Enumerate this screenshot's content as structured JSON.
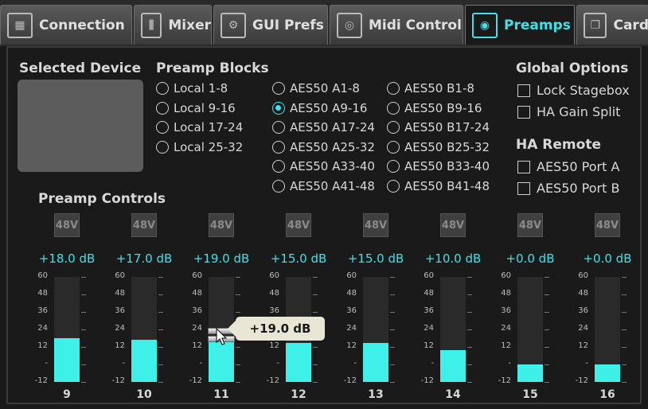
{
  "tabs": [
    {
      "label": "Connection",
      "icon": "mixer-console-icon"
    },
    {
      "label": "Mixer",
      "icon": "faders-icon"
    },
    {
      "label": "GUI Prefs",
      "icon": "gears-icon"
    },
    {
      "label": "Midi Control",
      "icon": "midi-connector-icon"
    },
    {
      "label": "Preamps",
      "icon": "preamp-knob-icon",
      "active": true
    },
    {
      "label": "Card",
      "icon": "card-windows-icon"
    }
  ],
  "selected_device": {
    "heading": "Selected Device"
  },
  "preamp_blocks": {
    "heading": "Preamp Blocks",
    "col1": [
      "Local 1-8",
      "Local 9-16",
      "Local 17-24",
      "Local 25-32"
    ],
    "col2": [
      "AES50 A1-8",
      "AES50 A9-16",
      "AES50 A17-24",
      "AES50 A25-32",
      "AES50 A33-40",
      "AES50 A41-48"
    ],
    "col3": [
      "AES50 B1-8",
      "AES50 B9-16",
      "AES50 B17-24",
      "AES50 B25-32",
      "AES50 B33-40",
      "AES50 B41-48"
    ],
    "selected": "AES50 A9-16"
  },
  "global_options": {
    "heading": "Global Options",
    "items": [
      "Lock Stagebox",
      "HA Gain Split"
    ]
  },
  "ha_remote": {
    "heading": "HA Remote",
    "items": [
      "AES50 Port A",
      "AES50 Port B"
    ]
  },
  "preamp_controls": {
    "heading": "Preamp Controls",
    "phantom_label": "48V",
    "scale": [
      "60",
      "48",
      "36",
      "24",
      "12",
      "-",
      "-12"
    ],
    "channels": [
      {
        "num": "9",
        "gain": "+18.0 dB",
        "value": 18
      },
      {
        "num": "10",
        "gain": "+17.0 dB",
        "value": 17
      },
      {
        "num": "11",
        "gain": "+19.0 dB",
        "value": 19
      },
      {
        "num": "12",
        "gain": "+15.0 dB",
        "value": 15
      },
      {
        "num": "13",
        "gain": "+15.0 dB",
        "value": 15
      },
      {
        "num": "14",
        "gain": "+10.0 dB",
        "value": 10
      },
      {
        "num": "15",
        "gain": "+0.0 dB",
        "value": 0
      },
      {
        "num": "16",
        "gain": "+0.0 dB",
        "value": 0
      }
    ],
    "tooltip": "+19.0 dB"
  },
  "colors": {
    "accent": "#40e0e8",
    "fill": "#3ff0e8"
  }
}
